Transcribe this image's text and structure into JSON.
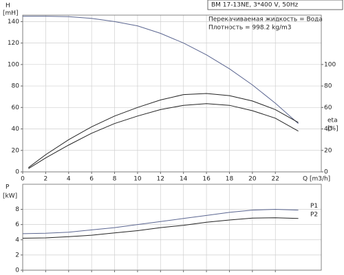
{
  "chart_data": [
    {
      "type": "line",
      "title": "BM 17-13NE, 3*400 V, 50Hz",
      "annotations": [
        "Перекачиваемая жидкость = Вода",
        "Плотность = 998.2 kg/m3"
      ],
      "xlabel": "Q [m3/h]",
      "ylabel": "H",
      "yunit": "[mH]",
      "y2label": "eta",
      "y2unit": "[%]",
      "xlim": [
        0,
        26
      ],
      "xticks": [
        0,
        2,
        4,
        6,
        8,
        10,
        12,
        14,
        16,
        18,
        20,
        22
      ],
      "ylim": [
        0,
        146
      ],
      "yticks": [
        0,
        20,
        40,
        60,
        80,
        100,
        120,
        140
      ],
      "y2lim": [
        0,
        146
      ],
      "y2ticks": [
        0,
        20,
        40,
        60,
        80,
        100
      ],
      "grid": true,
      "series": [
        {
          "color": "#5a6590",
          "x": [
            0,
            2,
            4,
            6,
            8,
            10,
            12,
            14,
            16,
            18,
            20,
            22,
            24
          ],
          "values": [
            145,
            145,
            144.5,
            143,
            140,
            136,
            129,
            120,
            109,
            96,
            81,
            64,
            45
          ]
        },
        {
          "color": "#222222",
          "axis": "y2",
          "x": [
            0.5,
            2,
            4,
            6,
            8,
            10,
            12,
            14,
            16,
            18,
            20,
            22,
            24
          ],
          "values": [
            4,
            16,
            30,
            42,
            52,
            60,
            67,
            72,
            73,
            71,
            66,
            58,
            46
          ]
        },
        {
          "color": "#222222",
          "axis": "y2",
          "x": [
            0.5,
            2,
            4,
            6,
            8,
            10,
            12,
            14,
            16,
            18,
            20,
            22,
            24
          ],
          "values": [
            3,
            13,
            25,
            36,
            45,
            52,
            58,
            62,
            63.5,
            62,
            57,
            50,
            38
          ]
        }
      ]
    },
    {
      "type": "line",
      "ylabel": "P",
      "yunit": "[kW]",
      "xlim": [
        0,
        26
      ],
      "xticks": [
        0,
        2,
        4,
        6,
        8,
        10,
        12,
        14,
        16,
        18,
        20,
        22
      ],
      "show_xtick_labels": false,
      "ylim": [
        0,
        11.3
      ],
      "yticks": [
        0,
        2,
        4,
        6,
        8
      ],
      "grid": true,
      "series": [
        {
          "name": "P1",
          "color": "#5a6590",
          "x": [
            0,
            2,
            4,
            6,
            8,
            10,
            12,
            14,
            16,
            18,
            20,
            22,
            24
          ],
          "values": [
            4.8,
            4.85,
            5.0,
            5.3,
            5.6,
            6.0,
            6.4,
            6.8,
            7.2,
            7.6,
            7.9,
            8.0,
            7.9
          ]
        },
        {
          "name": "P2",
          "color": "#222222",
          "x": [
            0,
            2,
            4,
            6,
            8,
            10,
            12,
            14,
            16,
            18,
            20,
            22,
            24
          ],
          "values": [
            4.2,
            4.25,
            4.4,
            4.6,
            4.9,
            5.2,
            5.6,
            5.9,
            6.3,
            6.6,
            6.85,
            6.9,
            6.8
          ]
        }
      ]
    }
  ]
}
